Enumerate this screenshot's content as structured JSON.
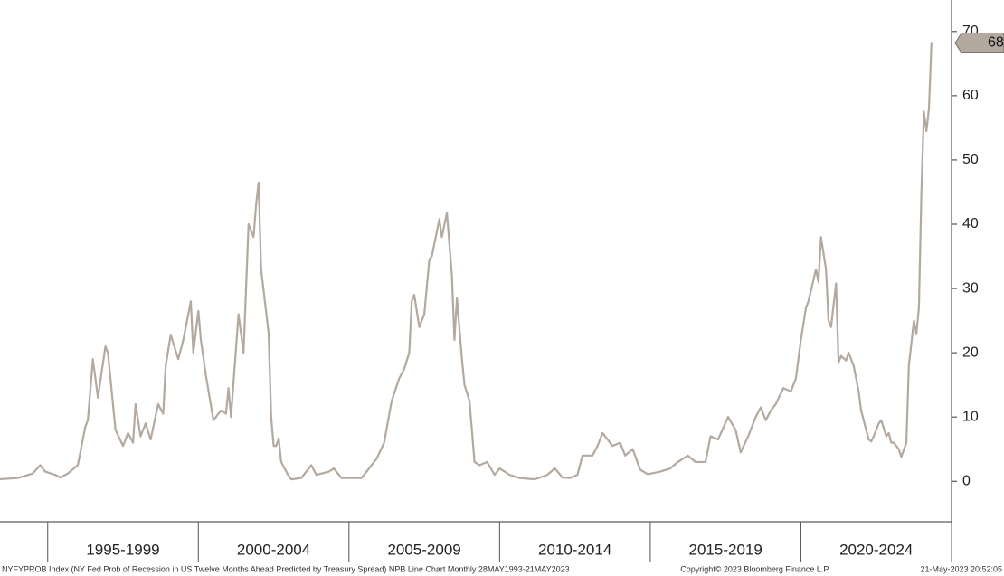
{
  "chart_data": {
    "type": "line",
    "x": [
      "1993-05",
      "1994-01",
      "1994-07",
      "1994-10",
      "1994-12",
      "1995-04",
      "1995-06",
      "1995-09",
      "1996-01",
      "1996-04",
      "1996-05",
      "1996-07",
      "1996-09",
      "1996-12",
      "1997-01",
      "1997-04",
      "1997-07",
      "1997-09",
      "1997-11",
      "1997-12",
      "1998-02",
      "1998-04",
      "1998-06",
      "1998-09",
      "1998-11",
      "1998-12",
      "1999-02",
      "1999-05",
      "1999-07",
      "1999-10",
      "1999-11",
      "2000-01",
      "2000-02",
      "2000-04",
      "2000-07",
      "2000-10",
      "2000-12",
      "2001-01",
      "2001-02",
      "2001-05",
      "2001-07",
      "2001-09",
      "2001-11",
      "2001-12",
      "2002-01",
      "2002-02",
      "2002-05",
      "2002-06",
      "2002-07",
      "2002-08",
      "2002-09",
      "2002-10",
      "2003-01",
      "2003-02",
      "2003-06",
      "2003-10",
      "2003-12",
      "2004-05",
      "2004-07",
      "2004-10",
      "2005-03",
      "2005-06",
      "2005-08",
      "2005-12",
      "2006-03",
      "2006-06",
      "2006-09",
      "2006-11",
      "2007-01",
      "2007-02",
      "2007-03",
      "2007-05",
      "2007-07",
      "2007-09",
      "2007-10",
      "2008-01",
      "2008-02",
      "2008-04",
      "2008-06",
      "2008-07",
      "2008-08",
      "2008-10",
      "2008-11",
      "2009-01",
      "2009-03",
      "2009-05",
      "2009-08",
      "2009-11",
      "2010-01",
      "2010-05",
      "2010-09",
      "2011-03",
      "2011-08",
      "2011-11",
      "2012-02",
      "2012-05",
      "2012-08",
      "2012-10",
      "2013-02",
      "2013-04",
      "2013-06",
      "2013-10",
      "2014-01",
      "2014-03",
      "2014-06",
      "2014-09",
      "2014-12",
      "2015-05",
      "2015-09",
      "2015-12",
      "2016-04",
      "2016-07",
      "2016-11",
      "2017-01",
      "2017-04",
      "2017-08",
      "2017-11",
      "2018-01",
      "2018-04",
      "2018-07",
      "2018-09",
      "2018-11",
      "2019-01",
      "2019-03",
      "2019-06",
      "2019-09",
      "2019-11",
      "2020-01",
      "2020-03",
      "2020-04",
      "2020-07",
      "2020-08",
      "2020-09",
      "2020-11",
      "2020-12",
      "2021-01",
      "2021-03",
      "2021-04",
      "2021-05",
      "2021-07",
      "2021-08",
      "2021-10",
      "2021-12",
      "2022-01",
      "2022-04",
      "2022-05",
      "2022-06",
      "2022-08",
      "2022-09",
      "2022-11",
      "2022-12",
      "2023-01",
      "2023-02",
      "2023-04",
      "2023-05",
      "2023-07",
      "2023-08",
      "2023-10",
      "2023-11",
      "2023-12",
      "2024-01",
      "2024-02",
      "2024-03",
      "2024-04",
      "2024-05"
    ],
    "series": [
      {
        "name": "NYFYPROB Index",
        "color": "#b3a99f",
        "values": [
          0.3,
          0.5,
          1.2,
          2.5,
          1.5,
          1.0,
          0.6,
          1.2,
          2.5,
          8.5,
          9.5,
          19,
          13,
          21,
          20,
          8,
          5.5,
          7.5,
          6,
          12,
          7,
          9,
          6.5,
          12,
          10.5,
          18,
          22.8,
          19,
          22,
          28,
          20,
          26.5,
          22,
          16.5,
          9.5,
          11,
          10.5,
          14.5,
          10,
          26,
          20,
          40,
          38,
          43,
          46.5,
          33,
          23,
          10,
          5.5,
          5.5,
          6.7,
          3,
          0.8,
          0.3,
          0.5,
          2.5,
          1,
          1.5,
          2,
          0.5,
          0.5,
          0.5,
          1.5,
          3.5,
          6,
          12.5,
          16,
          17.5,
          20,
          28,
          29,
          24,
          26,
          34.5,
          35,
          40.8,
          38,
          41.8,
          32,
          22,
          28.5,
          19,
          15,
          12.5,
          3,
          2.5,
          3,
          1,
          2,
          1,
          0.5,
          0.3,
          1,
          2,
          0.6,
          0.5,
          1,
          4,
          4,
          5.5,
          7.5,
          5.5,
          6,
          4,
          5,
          1.8,
          1.1,
          1.5,
          2,
          3,
          4,
          3,
          3,
          7,
          6.5,
          10,
          8,
          4.5,
          7,
          10,
          11.5,
          9.5,
          11,
          12,
          14.5,
          14,
          16,
          22,
          27,
          28,
          33,
          31,
          38,
          33,
          25,
          24,
          30.8,
          18.5,
          19.5,
          18.8,
          20,
          18,
          14,
          11,
          6.5,
          6.2,
          7,
          9,
          9.5,
          7,
          7.5,
          6,
          6,
          5,
          3.8,
          6,
          18,
          25,
          23,
          27,
          45,
          57.5,
          54.5,
          58,
          68.22
        ]
      }
    ],
    "xlim": [
      "1993-06",
      "2025-01"
    ],
    "x_periods": [
      "1995-1999",
      "2000-2004",
      "2005-2009",
      "2010-2014",
      "2015-2019",
      "2020-2024"
    ],
    "ylim": [
      -6.3,
      74.9
    ],
    "yticks": [
      0,
      10,
      20,
      30,
      40,
      50,
      60,
      70
    ],
    "footer_left": "NYFYPROB Index (NY Fed Prob of Recession in US Twelve Months Ahead Predicted by Treasury Spread) NPB Line Chart  Monthly 28MAY1993-21MAY2023",
    "footer_center": "Copyright© 2023 Bloomberg Finance L.P.",
    "footer_right": "21-May-2023 20:52:05"
  }
}
